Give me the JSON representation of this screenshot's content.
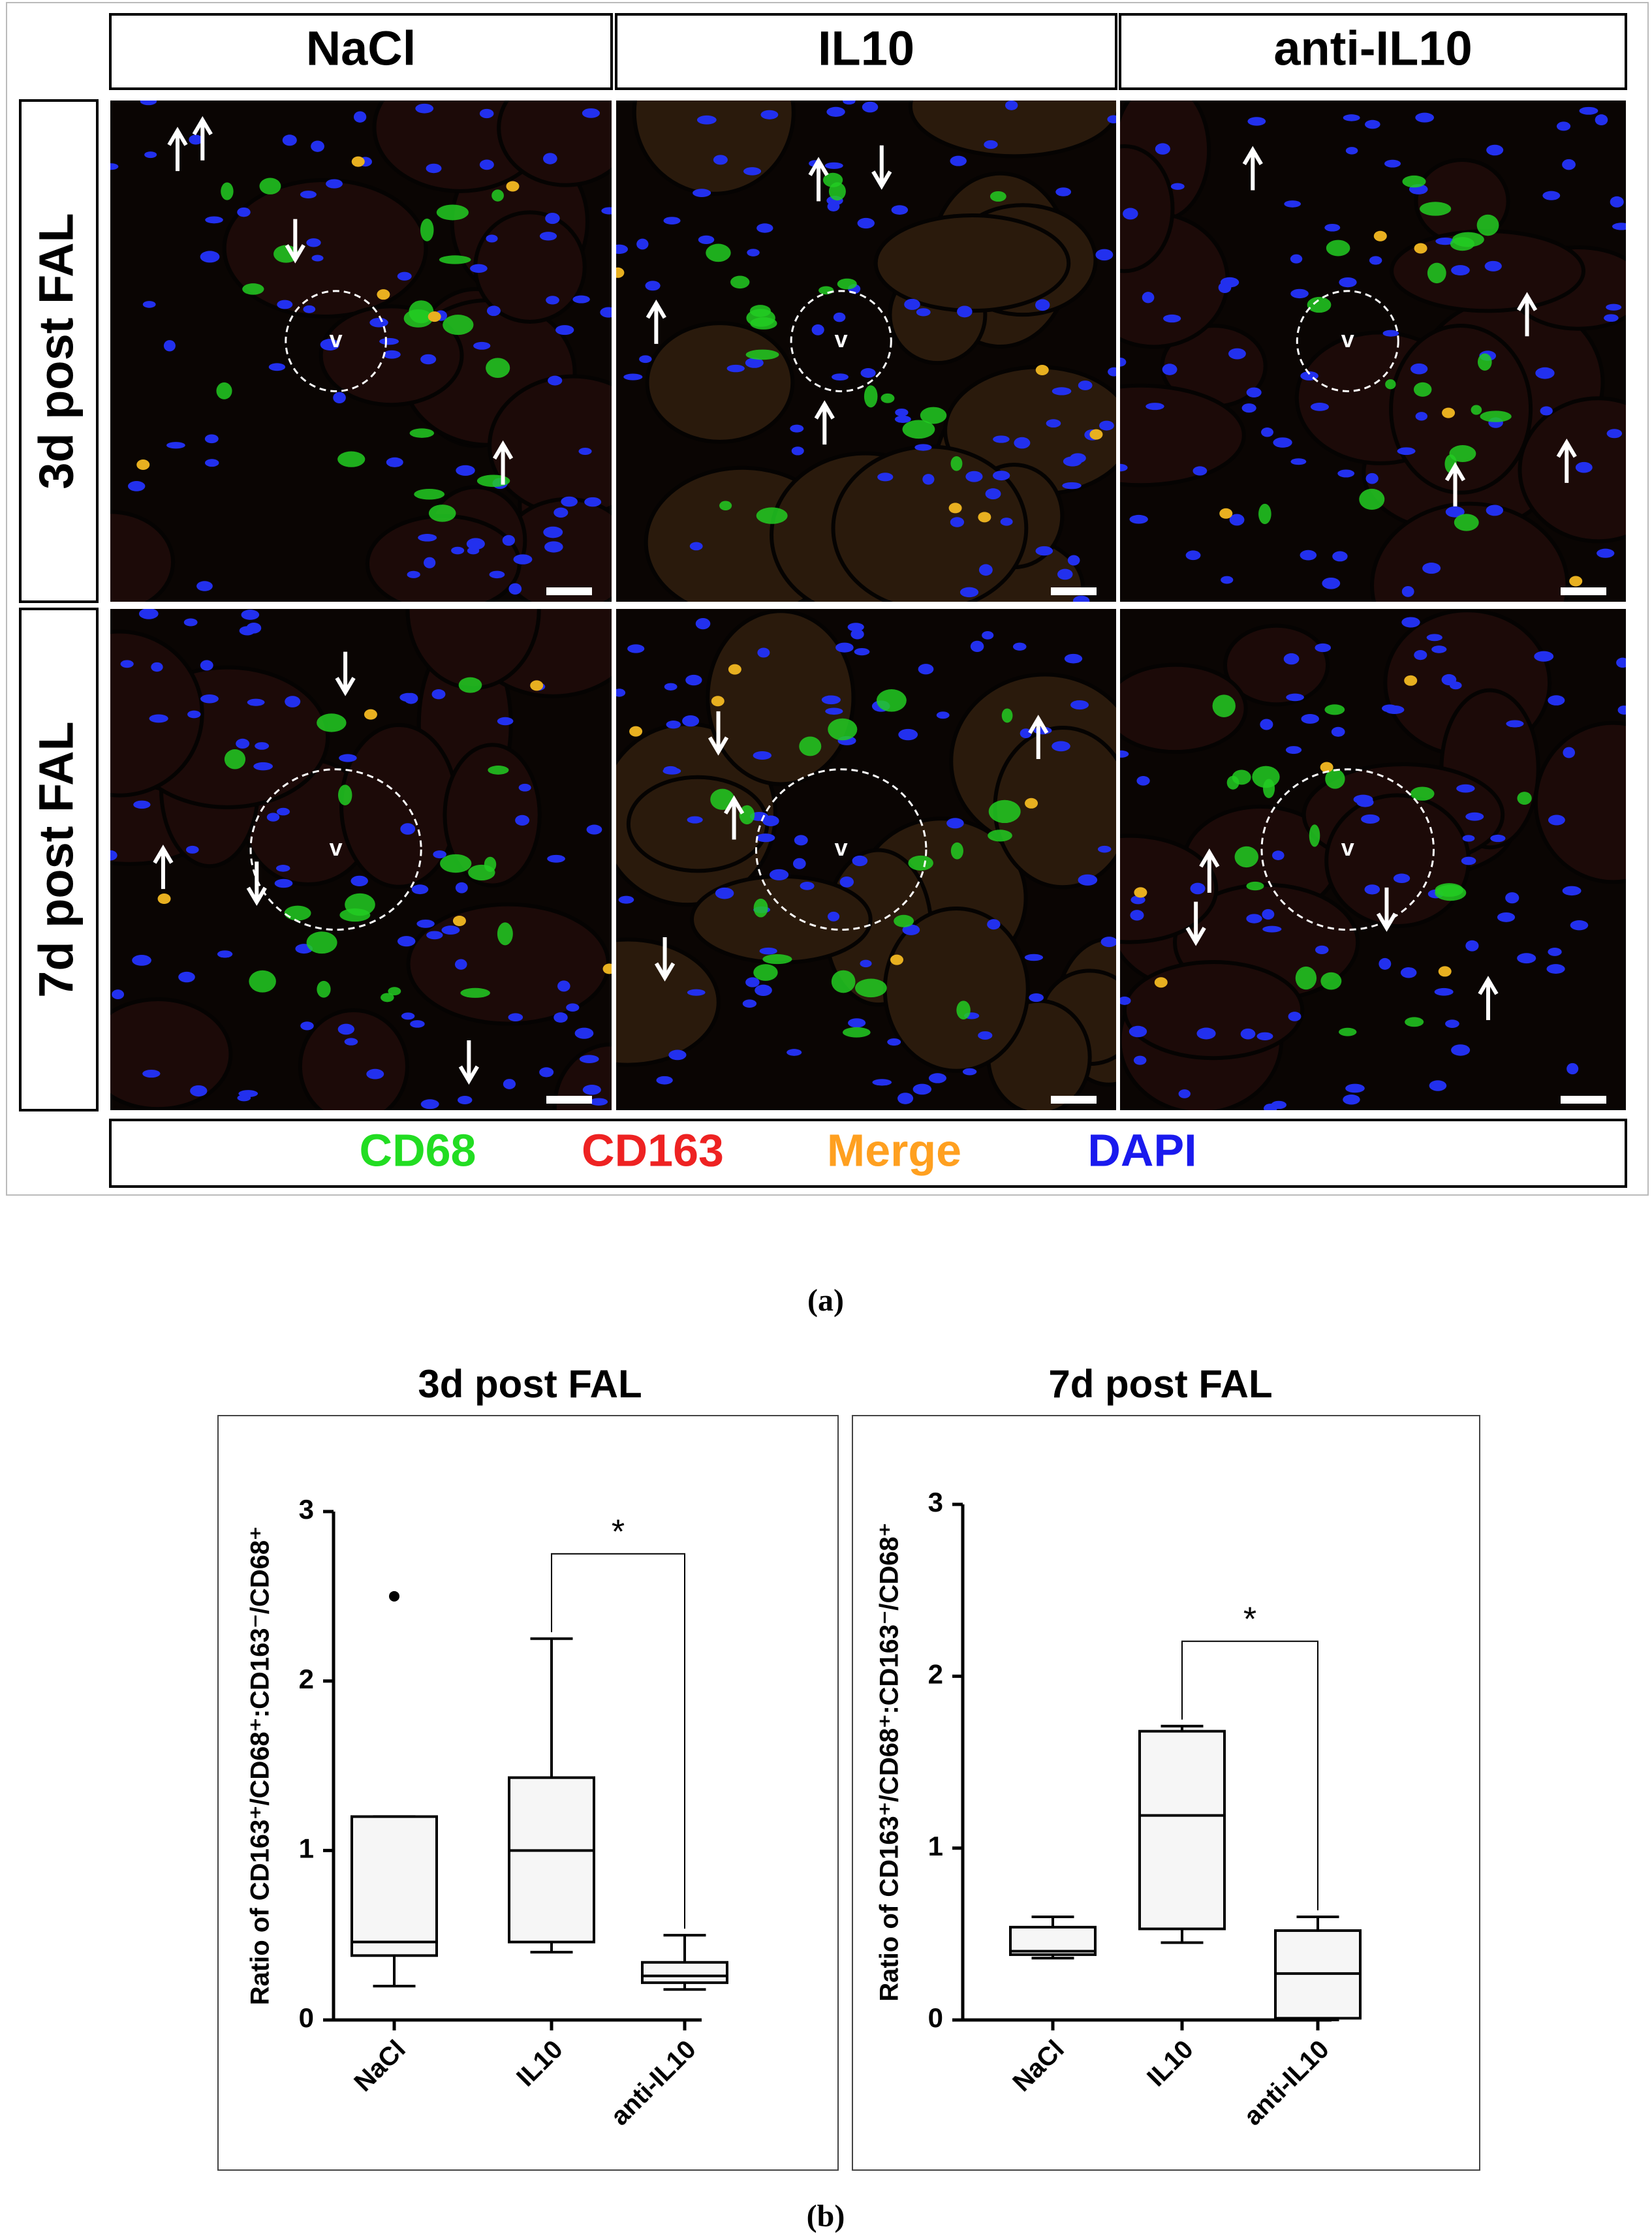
{
  "figure": {
    "panel_a": {
      "columns": [
        "NaCl",
        "IL10",
        "anti-IL10"
      ],
      "rows": [
        "3d post FAL",
        "7d post FAL"
      ],
      "vessel_label": "v",
      "legend": [
        {
          "text": "CD68",
          "color": "#22dd22"
        },
        {
          "text": "CD163",
          "color": "#ee2222"
        },
        {
          "text": "Merge",
          "color": "#ffa020"
        },
        {
          "text": "DAPI",
          "color": "#1a1aee"
        }
      ],
      "label": "(a)"
    },
    "panel_b_label": "(b)"
  },
  "chart_data": [
    {
      "type": "box",
      "title": "3d post FAL",
      "y_label": "Ratio of CD163⁺/CD68⁺:CD163⁻/CD68⁺",
      "categories": [
        "NaCl",
        "IL10",
        "anti-IL10"
      ],
      "whisker_low": [
        0.2,
        0.4,
        0.18
      ],
      "q1": [
        0.38,
        0.46,
        0.22
      ],
      "median": [
        0.46,
        1.0,
        0.26
      ],
      "q3": [
        1.2,
        1.43,
        0.34
      ],
      "whisker_high": [
        1.2,
        2.25,
        0.5
      ],
      "outliers": [
        [
          2.5
        ],
        [],
        []
      ],
      "ylim": [
        0,
        3
      ],
      "yticks": [
        0,
        1,
        2,
        3
      ],
      "annotations": [
        {
          "text": "*",
          "from": "IL10",
          "to": "anti-IL10"
        }
      ]
    },
    {
      "type": "box",
      "title": "7d post FAL",
      "y_label": "Ratio of CD163⁺/CD68⁺:CD163⁻/CD68⁺",
      "categories": [
        "NaCl",
        "IL10",
        "anti-IL10"
      ],
      "whisker_low": [
        0.36,
        0.45,
        0.0
      ],
      "q1": [
        0.38,
        0.53,
        0.01
      ],
      "median": [
        0.4,
        1.19,
        0.27
      ],
      "q3": [
        0.54,
        1.68,
        0.52
      ],
      "whisker_high": [
        0.6,
        1.71,
        0.6
      ],
      "outliers": [
        [],
        [],
        []
      ],
      "ylim": [
        0,
        3
      ],
      "yticks": [
        0,
        1,
        2,
        3
      ],
      "annotations": [
        {
          "text": "*",
          "from": "IL10",
          "to": "anti-IL10"
        }
      ]
    }
  ]
}
